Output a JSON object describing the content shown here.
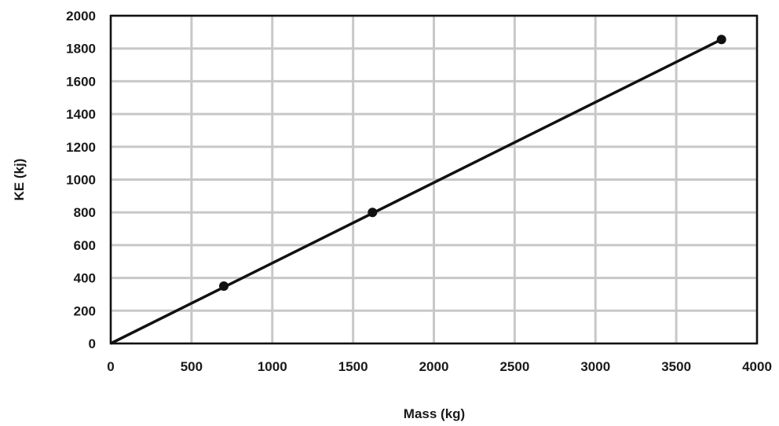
{
  "chart_data": {
    "type": "line",
    "title": "",
    "xlabel": "Mass (kg)",
    "ylabel": "KE (kj)",
    "xlim": [
      0,
      4000
    ],
    "ylim": [
      0,
      2000
    ],
    "x_ticks": [
      0,
      500,
      1000,
      1500,
      2000,
      2500,
      3000,
      3500,
      4000
    ],
    "y_ticks": [
      0,
      200,
      400,
      600,
      800,
      1000,
      1200,
      1400,
      1600,
      1800,
      2000
    ],
    "grid": true,
    "legend": "none",
    "line": {
      "x": [
        0,
        3780
      ],
      "y": [
        0,
        1855
      ]
    },
    "points": [
      {
        "x": 700,
        "y": 350
      },
      {
        "x": 1620,
        "y": 800
      },
      {
        "x": 3780,
        "y": 1855
      }
    ],
    "colors": {
      "line": "#111111",
      "grid": "#c8c8c8",
      "text": "#1a1a1a"
    }
  }
}
